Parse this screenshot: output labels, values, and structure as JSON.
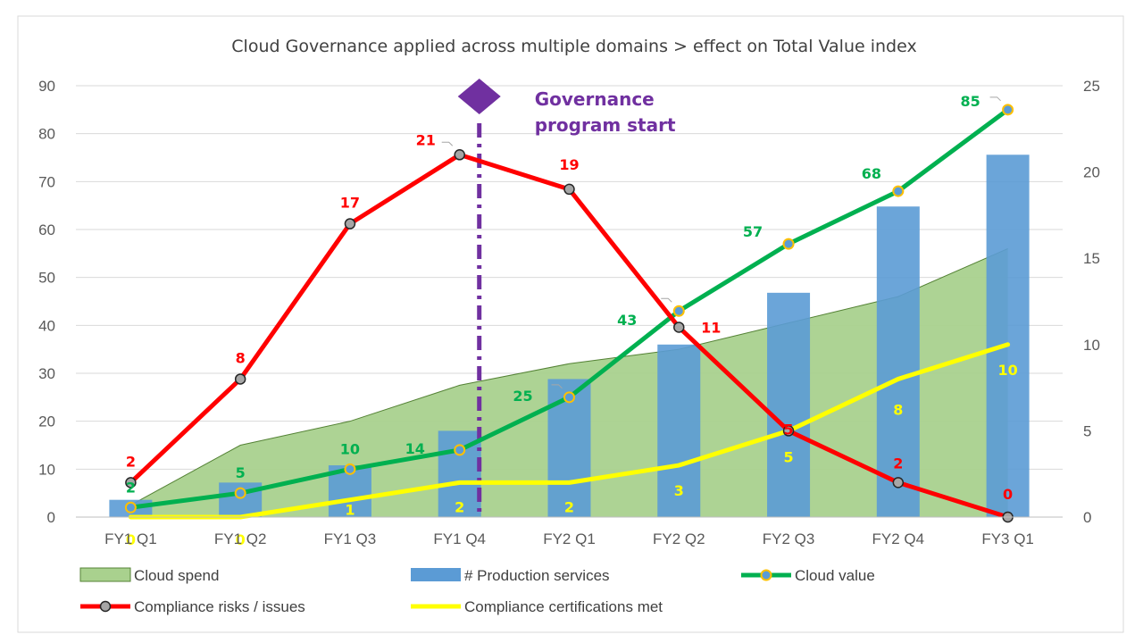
{
  "chart_data": {
    "type": "combo",
    "title": "Cloud Governance applied across multiple domains > effect on Total Value index",
    "categories": [
      "FY1 Q1",
      "FY1 Q2",
      "FY1 Q3",
      "FY1 Q4",
      "FY2 Q1",
      "FY2 Q2",
      "FY2 Q3",
      "FY2 Q4",
      "FY3 Q1"
    ],
    "y_left": {
      "ylim": [
        0,
        90
      ],
      "ticks": [
        0,
        10,
        20,
        30,
        40,
        50,
        60,
        70,
        80,
        90
      ]
    },
    "y_right": {
      "ylim": [
        0,
        25
      ],
      "ticks": [
        0,
        5,
        10,
        15,
        20,
        25
      ]
    },
    "grid": true,
    "legend_position": "bottom",
    "series": [
      {
        "name": "Cloud spend",
        "type": "area",
        "axis": "left",
        "color": "#a9d18e",
        "values": [
          2.5,
          15,
          20,
          27.5,
          32,
          35,
          40.5,
          46,
          56
        ]
      },
      {
        "name": "# Production services",
        "type": "bar",
        "axis": "right",
        "color": "#5b9bd5",
        "values": [
          1,
          2,
          3,
          5,
          8,
          10,
          13,
          18,
          21
        ]
      },
      {
        "name": "Cloud value",
        "type": "line",
        "axis": "left",
        "color": "#00b050",
        "values": [
          2,
          5,
          10,
          14,
          25,
          43,
          57,
          68,
          85
        ],
        "labels": [
          "2",
          "5",
          "10",
          "14",
          "25",
          "43",
          "57",
          "68",
          "85"
        ]
      },
      {
        "name": "Compliance risks / issues",
        "type": "line",
        "axis": "right",
        "color": "#ff0000",
        "values": [
          2,
          8,
          17,
          21,
          19,
          11,
          5,
          2,
          0
        ],
        "labels": [
          "2",
          "8",
          "17",
          "21",
          "19",
          "11",
          "5",
          "2",
          "0"
        ]
      },
      {
        "name": "Compliance certifications met",
        "type": "line",
        "axis": "right",
        "color": "#ffff00",
        "values": [
          0,
          0,
          1,
          2,
          2,
          3,
          5,
          8,
          10
        ],
        "labels": [
          "0",
          "0",
          "1",
          "2",
          "2",
          "3",
          "5",
          "8",
          "10"
        ]
      }
    ],
    "annotation": {
      "text_line1": "Governance",
      "text_line2": "program start",
      "at_category": "FY1 Q4",
      "color": "#7030a0"
    }
  }
}
